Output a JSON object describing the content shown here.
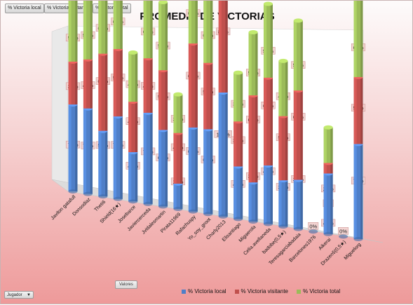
{
  "filter_buttons": [
    "% Victoria local",
    "% Victoria visitante",
    "% Victoria total"
  ],
  "values_button": "Valores",
  "field_button": "Jugador",
  "colors": {
    "local": "#4f7fc8",
    "visitante": "#c0504d",
    "total": "#9bbb59"
  },
  "chart_data": {
    "type": "bar",
    "stacked": true,
    "three_d": true,
    "title": "PROMEDIO DE VICTORIAS",
    "legend_position": "bottom",
    "categories": [
      "Javilon gatafull",
      "Donsodiaz",
      "Theti6",
      "Shield(16★)",
      "Josebarce",
      "Javiercerceda",
      "Jvidalesmartin",
      "Pirata11969",
      "Rafachuspy",
      "Yo_soy_groot",
      "Charly2013",
      "Elisantiago",
      "Migaerola",
      "Celia.avellaneda",
      "badobe(0,5★)",
      "Teresagarciabadaia",
      "Barcelones1976",
      "Aikerai",
      "Drazen5(0,5★)",
      "Miguelorg"
    ],
    "series": [
      {
        "name": "% Victoria local",
        "values": [
          77,
          75,
          57,
          71,
          42,
          77,
          64,
          21,
          69,
          69,
          100,
          42,
          31,
          46,
          36,
          38,
          0,
          46,
          0,
          71
        ],
        "labels": [
          "77%",
          "75%",
          "57%",
          "71%",
          "42%",
          "77%",
          "64%",
          "21%",
          "69%",
          "69%",
          "100%",
          "42%",
          "31%",
          "46%",
          "36%",
          "38%",
          "0%",
          "46%",
          "0%",
          "71%"
        ]
      },
      {
        "name": "% Victoria visitante",
        "values": [
          38,
          43,
          67,
          58,
          43,
          46,
          50,
          42,
          69,
          54,
          85,
          36,
          69,
          69,
          50,
          69,
          0,
          8,
          0,
          50
        ],
        "labels": [
          "38%",
          "43%",
          "67%",
          "58%",
          "43%",
          "46%",
          "50%",
          "42%",
          "69%",
          "54%",
          "85%",
          "36%",
          "69%",
          "69%",
          "50%",
          "69%",
          "",
          "8%",
          "",
          "50%"
        ]
      },
      {
        "name": "% Victoria total",
        "values": [
          58,
          59,
          62,
          65,
          42,
          62,
          57,
          32,
          69,
          62,
          92,
          39,
          50,
          58,
          43,
          54,
          0,
          27,
          0,
          61
        ],
        "labels": [
          "58%",
          "59%",
          "62%",
          "65%",
          "42%",
          "62%",
          "57%",
          "32%",
          "69%",
          "62%",
          "92%",
          "39%",
          "50%",
          "58%",
          "43%",
          "54%",
          "",
          "27%",
          "",
          "61%"
        ]
      }
    ]
  }
}
